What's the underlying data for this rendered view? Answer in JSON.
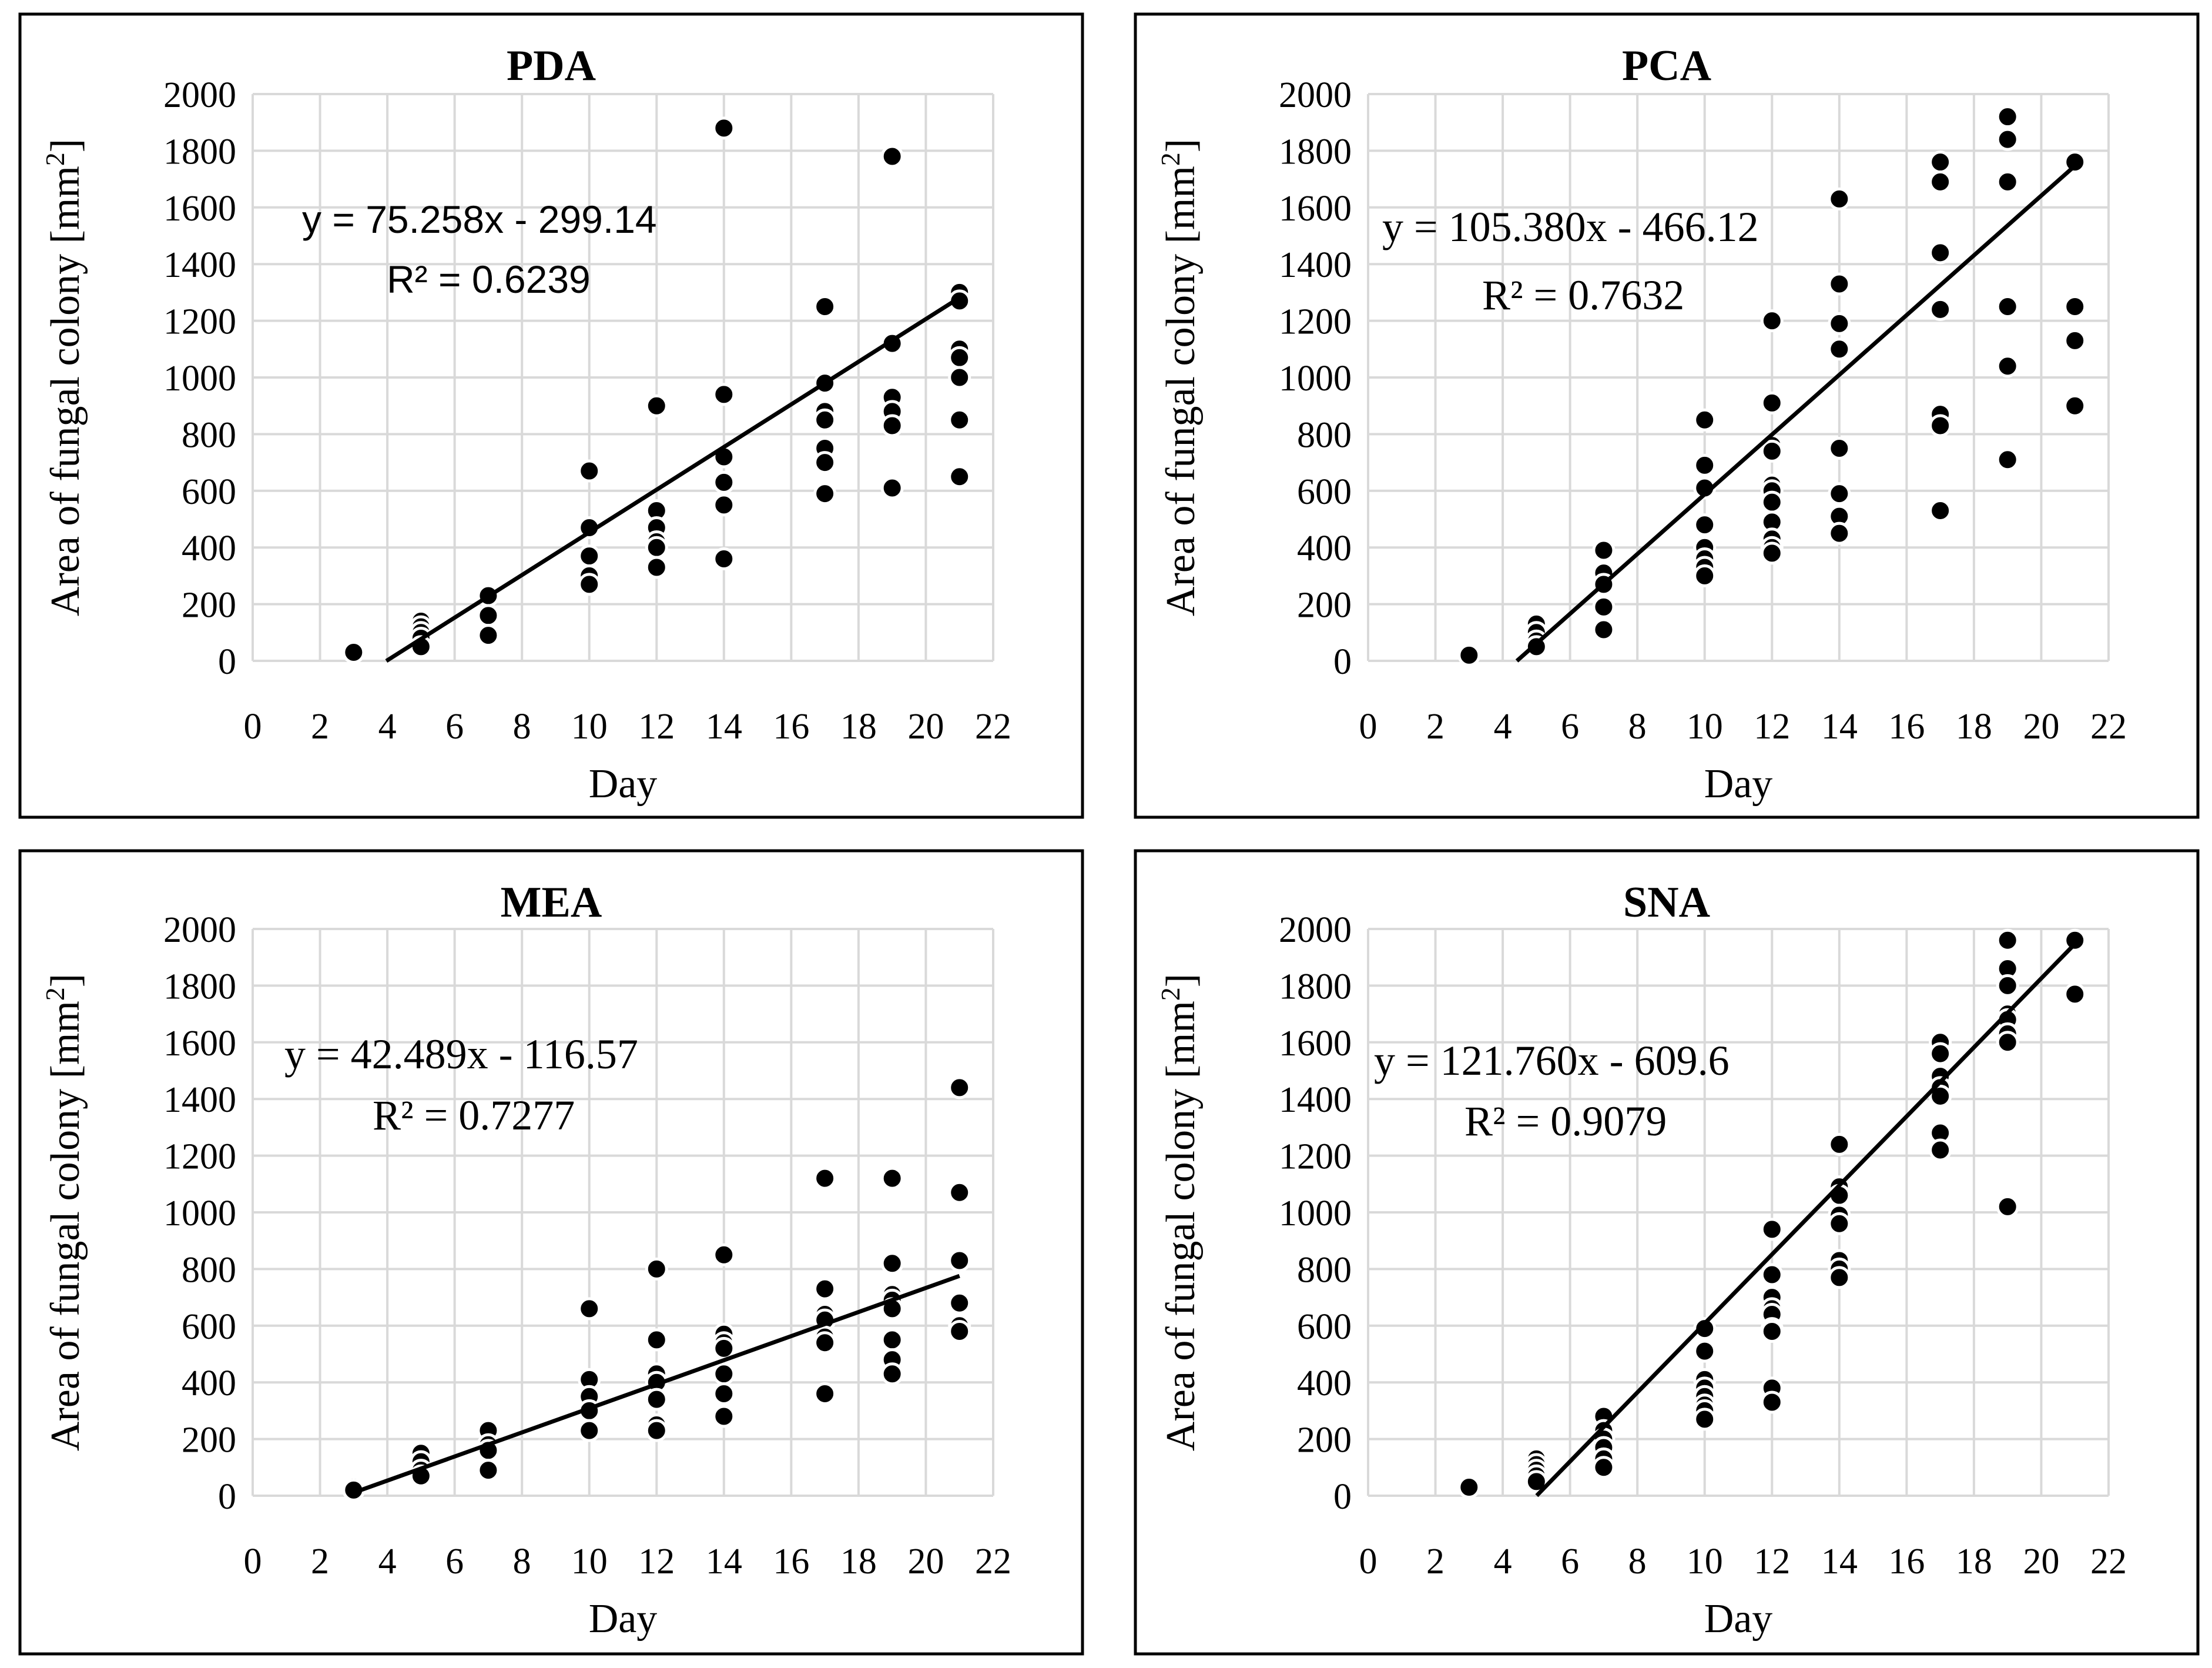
{
  "chart_data": [
    {
      "type": "scatter",
      "title": "PDA",
      "xlabel": "Day",
      "ylabel": "Area of fungal colony [mm²]",
      "xlim": [
        0,
        22
      ],
      "ylim": [
        0,
        2000
      ],
      "xticks": [
        0,
        2,
        4,
        6,
        8,
        10,
        12,
        14,
        16,
        18,
        20,
        22
      ],
      "yticks": [
        0,
        200,
        400,
        600,
        800,
        1000,
        1200,
        1400,
        1600,
        1800,
        2000
      ],
      "grid": true,
      "trendline": {
        "slope": 75.258,
        "intercept": -299.14,
        "x_range": [
          3.97,
          21
        ]
      },
      "equation_label": "y = 75.258x - 299.14",
      "r2_label": "R² = 0.6239",
      "equation_font": "sans",
      "points": [
        [
          3,
          30
        ],
        [
          5,
          140
        ],
        [
          5,
          120
        ],
        [
          5,
          100
        ],
        [
          5,
          80
        ],
        [
          5,
          50
        ],
        [
          7,
          230
        ],
        [
          7,
          160
        ],
        [
          7,
          90
        ],
        [
          10,
          670
        ],
        [
          10,
          470
        ],
        [
          10,
          370
        ],
        [
          10,
          300
        ],
        [
          10,
          270
        ],
        [
          12,
          900
        ],
        [
          12,
          530
        ],
        [
          12,
          470
        ],
        [
          12,
          420
        ],
        [
          12,
          400
        ],
        [
          12,
          330
        ],
        [
          14,
          1880
        ],
        [
          14,
          940
        ],
        [
          14,
          720
        ],
        [
          14,
          630
        ],
        [
          14,
          550
        ],
        [
          14,
          360
        ],
        [
          17,
          1250
        ],
        [
          17,
          980
        ],
        [
          17,
          880
        ],
        [
          17,
          850
        ],
        [
          17,
          750
        ],
        [
          17,
          700
        ],
        [
          17,
          590
        ],
        [
          19,
          1780
        ],
        [
          19,
          1120
        ],
        [
          19,
          930
        ],
        [
          19,
          880
        ],
        [
          19,
          830
        ],
        [
          19,
          610
        ],
        [
          21,
          1300
        ],
        [
          21,
          1270
        ],
        [
          21,
          1100
        ],
        [
          21,
          1070
        ],
        [
          21,
          1000
        ],
        [
          21,
          850
        ],
        [
          21,
          650
        ]
      ]
    },
    {
      "type": "scatter",
      "title": "PCA",
      "xlabel": "Day",
      "ylabel": "Area of fungal colony [mm²]",
      "xlim": [
        0,
        22
      ],
      "ylim": [
        0,
        2000
      ],
      "xticks": [
        0,
        2,
        4,
        6,
        8,
        10,
        12,
        14,
        16,
        18,
        20,
        22
      ],
      "yticks": [
        0,
        200,
        400,
        600,
        800,
        1000,
        1200,
        1400,
        1600,
        1800,
        2000
      ],
      "grid": true,
      "trendline": {
        "slope": 105.38,
        "intercept": -466.12,
        "x_range": [
          4.42,
          21
        ]
      },
      "equation_label": "y = 105.380x - 466.12",
      "r2_label": "R² = 0.7632",
      "equation_font": "serif",
      "points": [
        [
          3,
          20
        ],
        [
          5,
          130
        ],
        [
          5,
          100
        ],
        [
          5,
          70
        ],
        [
          5,
          50
        ],
        [
          7,
          390
        ],
        [
          7,
          310
        ],
        [
          7,
          270
        ],
        [
          7,
          190
        ],
        [
          7,
          110
        ],
        [
          10,
          850
        ],
        [
          10,
          690
        ],
        [
          10,
          610
        ],
        [
          10,
          480
        ],
        [
          10,
          400
        ],
        [
          10,
          360
        ],
        [
          10,
          330
        ],
        [
          10,
          300
        ],
        [
          12,
          1200
        ],
        [
          12,
          910
        ],
        [
          12,
          760
        ],
        [
          12,
          740
        ],
        [
          12,
          620
        ],
        [
          12,
          600
        ],
        [
          12,
          560
        ],
        [
          12,
          490
        ],
        [
          12,
          430
        ],
        [
          12,
          400
        ],
        [
          12,
          380
        ],
        [
          14,
          1630
        ],
        [
          14,
          1330
        ],
        [
          14,
          1190
        ],
        [
          14,
          1100
        ],
        [
          14,
          750
        ],
        [
          14,
          590
        ],
        [
          14,
          510
        ],
        [
          14,
          450
        ],
        [
          17,
          1760
        ],
        [
          17,
          1690
        ],
        [
          17,
          1440
        ],
        [
          17,
          1240
        ],
        [
          17,
          870
        ],
        [
          17,
          830
        ],
        [
          17,
          530
        ],
        [
          19,
          1920
        ],
        [
          19,
          1840
        ],
        [
          19,
          1690
        ],
        [
          19,
          1250
        ],
        [
          19,
          1040
        ],
        [
          19,
          710
        ],
        [
          21,
          1760
        ],
        [
          21,
          1250
        ],
        [
          21,
          1130
        ],
        [
          21,
          900
        ]
      ]
    },
    {
      "type": "scatter",
      "title": "MEA",
      "xlabel": "Day",
      "ylabel": "Area of fungal colony [mm²]",
      "xlim": [
        0,
        22
      ],
      "ylim": [
        0,
        2000
      ],
      "xticks": [
        0,
        2,
        4,
        6,
        8,
        10,
        12,
        14,
        16,
        18,
        20,
        22
      ],
      "yticks": [
        0,
        200,
        400,
        600,
        800,
        1000,
        1200,
        1400,
        1600,
        1800,
        2000
      ],
      "grid": true,
      "trendline": {
        "slope": 42.489,
        "intercept": -116.57,
        "x_range": [
          3,
          21
        ]
      },
      "equation_label": "y = 42.489x - 116.57",
      "r2_label": "R² = 0.7277",
      "equation_font": "serif",
      "points": [
        [
          3,
          30
        ],
        [
          3,
          20
        ],
        [
          5,
          150
        ],
        [
          5,
          120
        ],
        [
          5,
          90
        ],
        [
          5,
          70
        ],
        [
          7,
          230
        ],
        [
          7,
          180
        ],
        [
          7,
          160
        ],
        [
          7,
          90
        ],
        [
          10,
          660
        ],
        [
          10,
          410
        ],
        [
          10,
          350
        ],
        [
          10,
          300
        ],
        [
          10,
          230
        ],
        [
          12,
          800
        ],
        [
          12,
          550
        ],
        [
          12,
          430
        ],
        [
          12,
          400
        ],
        [
          12,
          340
        ],
        [
          12,
          250
        ],
        [
          12,
          230
        ],
        [
          14,
          850
        ],
        [
          14,
          570
        ],
        [
          14,
          540
        ],
        [
          14,
          520
        ],
        [
          14,
          430
        ],
        [
          14,
          360
        ],
        [
          14,
          280
        ],
        [
          17,
          1120
        ],
        [
          17,
          730
        ],
        [
          17,
          640
        ],
        [
          17,
          620
        ],
        [
          17,
          560
        ],
        [
          17,
          540
        ],
        [
          17,
          360
        ],
        [
          19,
          1120
        ],
        [
          19,
          820
        ],
        [
          19,
          710
        ],
        [
          19,
          690
        ],
        [
          19,
          660
        ],
        [
          19,
          550
        ],
        [
          19,
          480
        ],
        [
          19,
          430
        ],
        [
          21,
          1440
        ],
        [
          21,
          1070
        ],
        [
          21,
          830
        ],
        [
          21,
          680
        ],
        [
          21,
          600
        ],
        [
          21,
          580
        ]
      ]
    },
    {
      "type": "scatter",
      "title": "SNA",
      "xlabel": "Day",
      "ylabel": "Area of fungal colony [mm²]",
      "xlim": [
        0,
        22
      ],
      "ylim": [
        0,
        2000
      ],
      "xticks": [
        0,
        2,
        4,
        6,
        8,
        10,
        12,
        14,
        16,
        18,
        20,
        22
      ],
      "yticks": [
        0,
        200,
        400,
        600,
        800,
        1000,
        1200,
        1400,
        1600,
        1800,
        2000
      ],
      "grid": true,
      "trendline": {
        "slope": 121.76,
        "intercept": -609.6,
        "x_range": [
          5.01,
          21
        ]
      },
      "equation_label": "y = 121.760x - 609.6",
      "r2_label": "R² = 0.9079",
      "equation_font": "serif",
      "points": [
        [
          3,
          30
        ],
        [
          5,
          130
        ],
        [
          5,
          110
        ],
        [
          5,
          90
        ],
        [
          5,
          70
        ],
        [
          5,
          50
        ],
        [
          7,
          280
        ],
        [
          7,
          230
        ],
        [
          7,
          200
        ],
        [
          7,
          170
        ],
        [
          7,
          130
        ],
        [
          7,
          100
        ],
        [
          10,
          590
        ],
        [
          10,
          510
        ],
        [
          10,
          410
        ],
        [
          10,
          380
        ],
        [
          10,
          350
        ],
        [
          10,
          320
        ],
        [
          10,
          300
        ],
        [
          10,
          270
        ],
        [
          12,
          940
        ],
        [
          12,
          780
        ],
        [
          12,
          700
        ],
        [
          12,
          660
        ],
        [
          12,
          640
        ],
        [
          12,
          590
        ],
        [
          12,
          580
        ],
        [
          12,
          380
        ],
        [
          12,
          330
        ],
        [
          14,
          1240
        ],
        [
          14,
          1090
        ],
        [
          14,
          1060
        ],
        [
          14,
          990
        ],
        [
          14,
          960
        ],
        [
          14,
          830
        ],
        [
          14,
          800
        ],
        [
          14,
          770
        ],
        [
          17,
          1600
        ],
        [
          17,
          1560
        ],
        [
          17,
          1480
        ],
        [
          17,
          1440
        ],
        [
          17,
          1410
        ],
        [
          17,
          1280
        ],
        [
          17,
          1220
        ],
        [
          19,
          1960
        ],
        [
          19,
          1860
        ],
        [
          19,
          1800
        ],
        [
          19,
          1700
        ],
        [
          19,
          1680
        ],
        [
          19,
          1630
        ],
        [
          19,
          1600
        ],
        [
          19,
          1020
        ],
        [
          21,
          1960
        ],
        [
          21,
          1770
        ]
      ]
    }
  ]
}
